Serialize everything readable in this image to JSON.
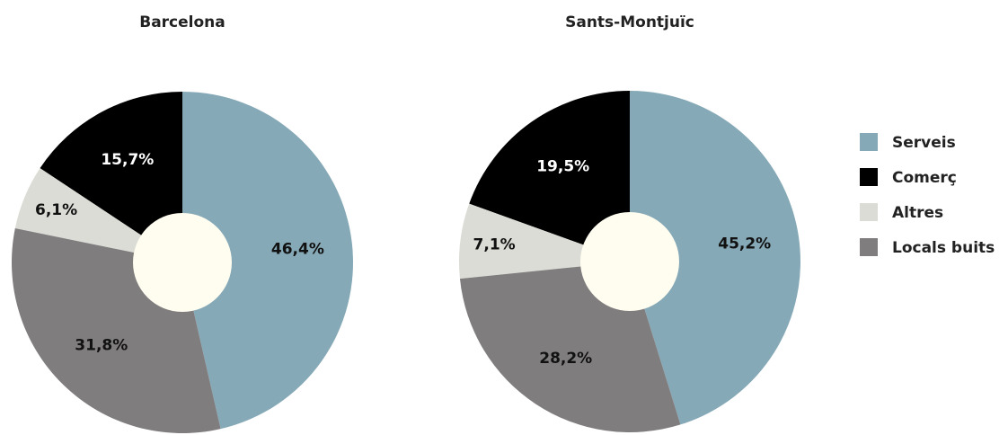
{
  "legend": {
    "labels": [
      "Serveis",
      "Comerç",
      "Altres",
      "Locals buits"
    ],
    "colors": [
      "#86a9b7",
      "#000000",
      "#dcdcd6",
      "#807d7f"
    ]
  },
  "chart_data": [
    {
      "type": "pie",
      "title": "Barcelona",
      "values": [
        46.4,
        15.7,
        6.1,
        31.8
      ],
      "value_labels": [
        "46,4%",
        "15,7%",
        "6,1%",
        "31,8%"
      ]
    },
    {
      "type": "pie",
      "title": "Sants-Montjuïc",
      "values": [
        45.2,
        19.5,
        7.1,
        28.2
      ],
      "value_labels": [
        "45,2%",
        "19,5%",
        "7,1%",
        "28,2%"
      ]
    }
  ]
}
